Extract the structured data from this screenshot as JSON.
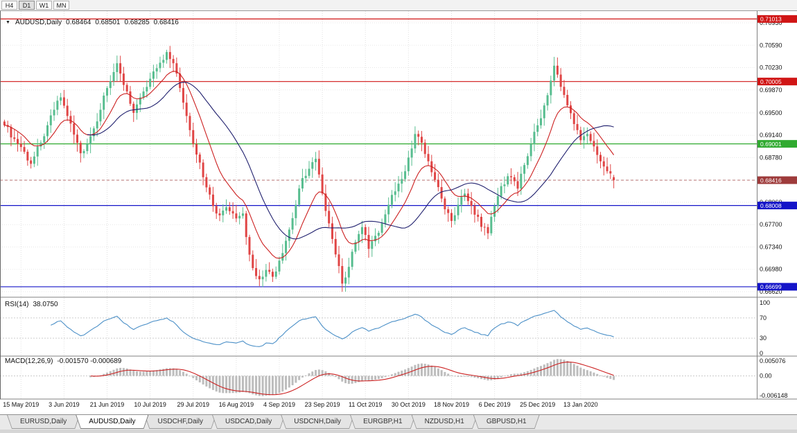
{
  "toolbar": {
    "buttons": [
      {
        "label": "H4",
        "active": false
      },
      {
        "label": "D1",
        "active": true
      },
      {
        "label": "W1",
        "active": false
      },
      {
        "label": "MN",
        "active": false
      }
    ]
  },
  "chart": {
    "title_marker": "▼",
    "symbol_title": "AUDUSD,Daily",
    "open": "0.68464",
    "high": "0.68501",
    "low": "0.68285",
    "close": "0.68416",
    "rsi_label": "RSI(14)",
    "rsi_value": "38.0750",
    "macd_label": "MACD(12,26,9)",
    "macd_values": "-0.001570 -0.000689"
  },
  "chart_data": {
    "type": "candlestick",
    "symbol": "AUDUSD",
    "timeframe": "Daily",
    "title": "AUDUSD,Daily 0.68464 0.68501 0.68285 0.68416",
    "last_candle": {
      "open": 0.68464,
      "high": 0.68501,
      "low": 0.68285,
      "close": 0.68416
    },
    "current_price": 0.68416,
    "ylim": [
      0.6662,
      0.7095
    ],
    "y_ticks": [
      "0.70950",
      "0.70590",
      "0.70230",
      "0.69870",
      "0.69500",
      "0.69140",
      "0.68780",
      "0.68420",
      "0.68060",
      "0.67700",
      "0.67340",
      "0.66980",
      "0.66620"
    ],
    "x_labels": [
      "15 May 2019",
      "3 Jun 2019",
      "21 Jun 2019",
      "10 Jul 2019",
      "29 Jul 2019",
      "16 Aug 2019",
      "4 Sep 2019",
      "23 Sep 2019",
      "11 Oct 2019",
      "30 Oct 2019",
      "18 Nov 2019",
      "6 Dec 2019",
      "25 Dec 2019",
      "13 Jan 2020"
    ],
    "x_label_indices": [
      5,
      18,
      31,
      44,
      57,
      70,
      83,
      96,
      109,
      122,
      135,
      148,
      161,
      174
    ],
    "bars_total": 185,
    "levels": [
      {
        "value": 0.71013,
        "label": "0.71013",
        "color": "#d01515"
      },
      {
        "value": 0.70005,
        "label": "0.70005",
        "color": "#d01515"
      },
      {
        "value": 0.69001,
        "label": "0.69001",
        "color": "#2faa2f"
      },
      {
        "value": 0.68008,
        "label": "0.68008",
        "color": "#1414c8"
      },
      {
        "value": 0.66699,
        "label": "0.66699",
        "color": "#1414c8"
      }
    ],
    "close_waypoints": [
      [
        0,
        0.693
      ],
      [
        3,
        0.6908
      ],
      [
        5,
        0.6895
      ],
      [
        8,
        0.6868
      ],
      [
        11,
        0.6902
      ],
      [
        13,
        0.693
      ],
      [
        15,
        0.6955
      ],
      [
        17,
        0.6975
      ],
      [
        19,
        0.6945
      ],
      [
        21,
        0.6915
      ],
      [
        23,
        0.6885
      ],
      [
        25,
        0.69
      ],
      [
        27,
        0.6925
      ],
      [
        29,
        0.6955
      ],
      [
        31,
        0.699
      ],
      [
        34,
        0.703
      ],
      [
        36,
        0.6995
      ],
      [
        39,
        0.695
      ],
      [
        41,
        0.6975
      ],
      [
        44,
        0.7005
      ],
      [
        46,
        0.7022
      ],
      [
        49,
        0.7048
      ],
      [
        51,
        0.703
      ],
      [
        53,
        0.699
      ],
      [
        55,
        0.6945
      ],
      [
        57,
        0.69
      ],
      [
        59,
        0.687
      ],
      [
        61,
        0.683
      ],
      [
        63,
        0.68
      ],
      [
        65,
        0.6785
      ],
      [
        67,
        0.6798
      ],
      [
        69,
        0.6788
      ],
      [
        70,
        0.678
      ],
      [
        72,
        0.6788
      ],
      [
        73,
        0.675
      ],
      [
        75,
        0.67
      ],
      [
        77,
        0.6682
      ],
      [
        79,
        0.6697
      ],
      [
        81,
        0.6686
      ],
      [
        83,
        0.6712
      ],
      [
        86,
        0.6762
      ],
      [
        88,
        0.6802
      ],
      [
        90,
        0.6845
      ],
      [
        92,
        0.686
      ],
      [
        94,
        0.6876
      ],
      [
        96,
        0.682
      ],
      [
        98,
        0.6772
      ],
      [
        100,
        0.6722
      ],
      [
        102,
        0.6675
      ],
      [
        104,
        0.6702
      ],
      [
        106,
        0.6742
      ],
      [
        108,
        0.6766
      ],
      [
        110,
        0.6731
      ],
      [
        112,
        0.6752
      ],
      [
        114,
        0.6772
      ],
      [
        116,
        0.6802
      ],
      [
        119,
        0.6836
      ],
      [
        121,
        0.6856
      ],
      [
        122,
        0.6878
      ],
      [
        124,
        0.6916
      ],
      [
        126,
        0.6902
      ],
      [
        128,
        0.6872
      ],
      [
        130,
        0.6842
      ],
      [
        132,
        0.6812
      ],
      [
        135,
        0.6776
      ],
      [
        137,
        0.6802
      ],
      [
        139,
        0.682
      ],
      [
        142,
        0.6786
      ],
      [
        146,
        0.6756
      ],
      [
        148,
        0.68
      ],
      [
        150,
        0.6832
      ],
      [
        152,
        0.6848
      ],
      [
        154,
        0.684
      ],
      [
        155,
        0.6828
      ],
      [
        157,
        0.6866
      ],
      [
        159,
        0.69
      ],
      [
        161,
        0.693
      ],
      [
        163,
        0.6962
      ],
      [
        165,
        0.7002
      ],
      [
        166,
        0.7026
      ],
      [
        168,
        0.6992
      ],
      [
        170,
        0.6962
      ],
      [
        172,
        0.6932
      ],
      [
        174,
        0.6906
      ],
      [
        176,
        0.6916
      ],
      [
        178,
        0.6896
      ],
      [
        180,
        0.6872
      ],
      [
        182,
        0.6856
      ],
      [
        184,
        0.68416
      ]
    ],
    "ma_fast": {
      "type": "EMA",
      "period": 12,
      "color": "#cc2020"
    },
    "ma_slow": {
      "type": "SMA",
      "period": 26,
      "color": "#20206e"
    },
    "rsi": {
      "period": 14,
      "current": 38.075,
      "color": "#4a8fc7",
      "ticks": [
        {
          "v": 100,
          "label": "100"
        },
        {
          "v": 70,
          "label": "70"
        },
        {
          "v": 30,
          "label": "30"
        },
        {
          "v": 0,
          "label": "0"
        }
      ],
      "guides": [
        70,
        30
      ]
    },
    "macd": {
      "fast": 12,
      "slow": 26,
      "signal": 9,
      "current_macd": -0.00157,
      "current_signal": -0.000689,
      "range": [
        -0.0061,
        0.0051
      ],
      "ticks": [
        {
          "v": 0.005076,
          "label": "0.005076"
        },
        {
          "v": 0,
          "label": "0.00"
        },
        {
          "v": -0.006148,
          "label": "-0.006148"
        }
      ],
      "hist_color": "#bdbdbd",
      "signal_color": "#cc2020"
    },
    "colors": {
      "bull": "#57bd8f",
      "bear": "#e04545",
      "grid": "#e0e0e0",
      "bid_tag": "#9e3b3b",
      "background": "#ffffff"
    }
  },
  "tabs": [
    {
      "label": "EURUSD,Daily",
      "active": false
    },
    {
      "label": "AUDUSD,Daily",
      "active": true
    },
    {
      "label": "USDCHF,Daily",
      "active": false
    },
    {
      "label": "USDCAD,Daily",
      "active": false
    },
    {
      "label": "USDCNH,Daily",
      "active": false
    },
    {
      "label": "EURGBP,H1",
      "active": false
    },
    {
      "label": "NZDUSD,H1",
      "active": false
    },
    {
      "label": "GBPUSD,H1",
      "active": false
    }
  ]
}
